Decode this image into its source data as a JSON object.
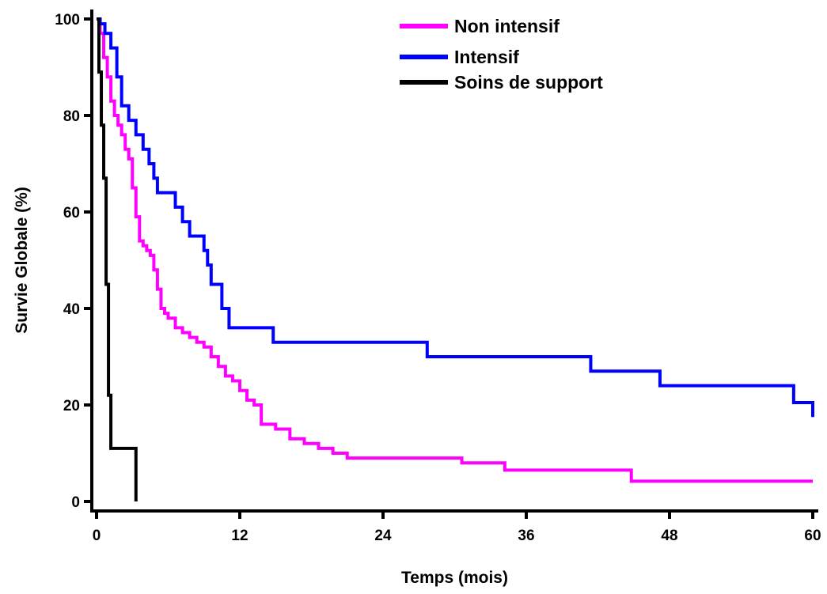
{
  "chart_data": {
    "type": "line",
    "step": true,
    "title": "",
    "xlabel": "Temps (mois)",
    "ylabel": "Survie Globale (%)",
    "xlim": [
      0,
      60
    ],
    "ylim": [
      0,
      100
    ],
    "xticks": [
      0,
      12,
      24,
      36,
      48,
      60
    ],
    "yticks": [
      0,
      20,
      40,
      60,
      80,
      100
    ],
    "grid": false,
    "legend_position": "top-right",
    "series": [
      {
        "name": "Non intensif",
        "color": "#ff00ff",
        "x": [
          0,
          0.3,
          0.6,
          0.9,
          1.2,
          1.5,
          1.8,
          2.1,
          2.4,
          2.7,
          3.0,
          3.3,
          3.6,
          3.9,
          4.2,
          4.5,
          4.8,
          5.1,
          5.4,
          5.7,
          6.0,
          6.6,
          7.2,
          7.8,
          8.4,
          9.0,
          9.6,
          10.2,
          10.8,
          11.4,
          12.0,
          12.6,
          13.2,
          13.8,
          14.4,
          15.0,
          16.2,
          17.4,
          18.6,
          19.8,
          21.0,
          30.6,
          34.2,
          44.8,
          60
        ],
        "y": [
          100,
          97,
          92,
          88,
          83,
          80,
          78,
          76,
          73,
          71,
          65,
          59,
          54,
          53,
          52,
          51,
          48,
          44,
          40,
          39,
          38,
          36,
          35,
          34,
          33,
          32,
          30,
          28,
          26,
          25,
          23,
          21,
          20,
          16,
          16,
          15,
          13,
          12,
          11,
          10,
          9,
          8,
          6.5,
          4.2,
          4.2
        ]
      },
      {
        "name": "Intensif",
        "color": "#0000ff",
        "x": [
          0,
          0.3,
          0.7,
          1.2,
          1.7,
          2.1,
          2.7,
          3.3,
          3.9,
          4.4,
          4.8,
          5.1,
          6.6,
          7.2,
          7.8,
          9.0,
          9.3,
          9.6,
          10.5,
          11.1,
          14.8,
          27.7,
          41.4,
          47.2,
          58.4,
          60
        ],
        "y": [
          100,
          99,
          97,
          94,
          88,
          82,
          79,
          76,
          73,
          70,
          67,
          64,
          61,
          58,
          55,
          52,
          49,
          45,
          40,
          36,
          33,
          30,
          27,
          24,
          20.5,
          17.5
        ]
      },
      {
        "name": "Soins de support",
        "color": "#000000",
        "x": [
          0,
          0.2,
          0.4,
          0.6,
          0.8,
          1.0,
          1.2,
          1.4,
          3.0,
          3.3
        ],
        "y": [
          100,
          89,
          78,
          67,
          45,
          22,
          11,
          11,
          11,
          0
        ]
      }
    ]
  }
}
